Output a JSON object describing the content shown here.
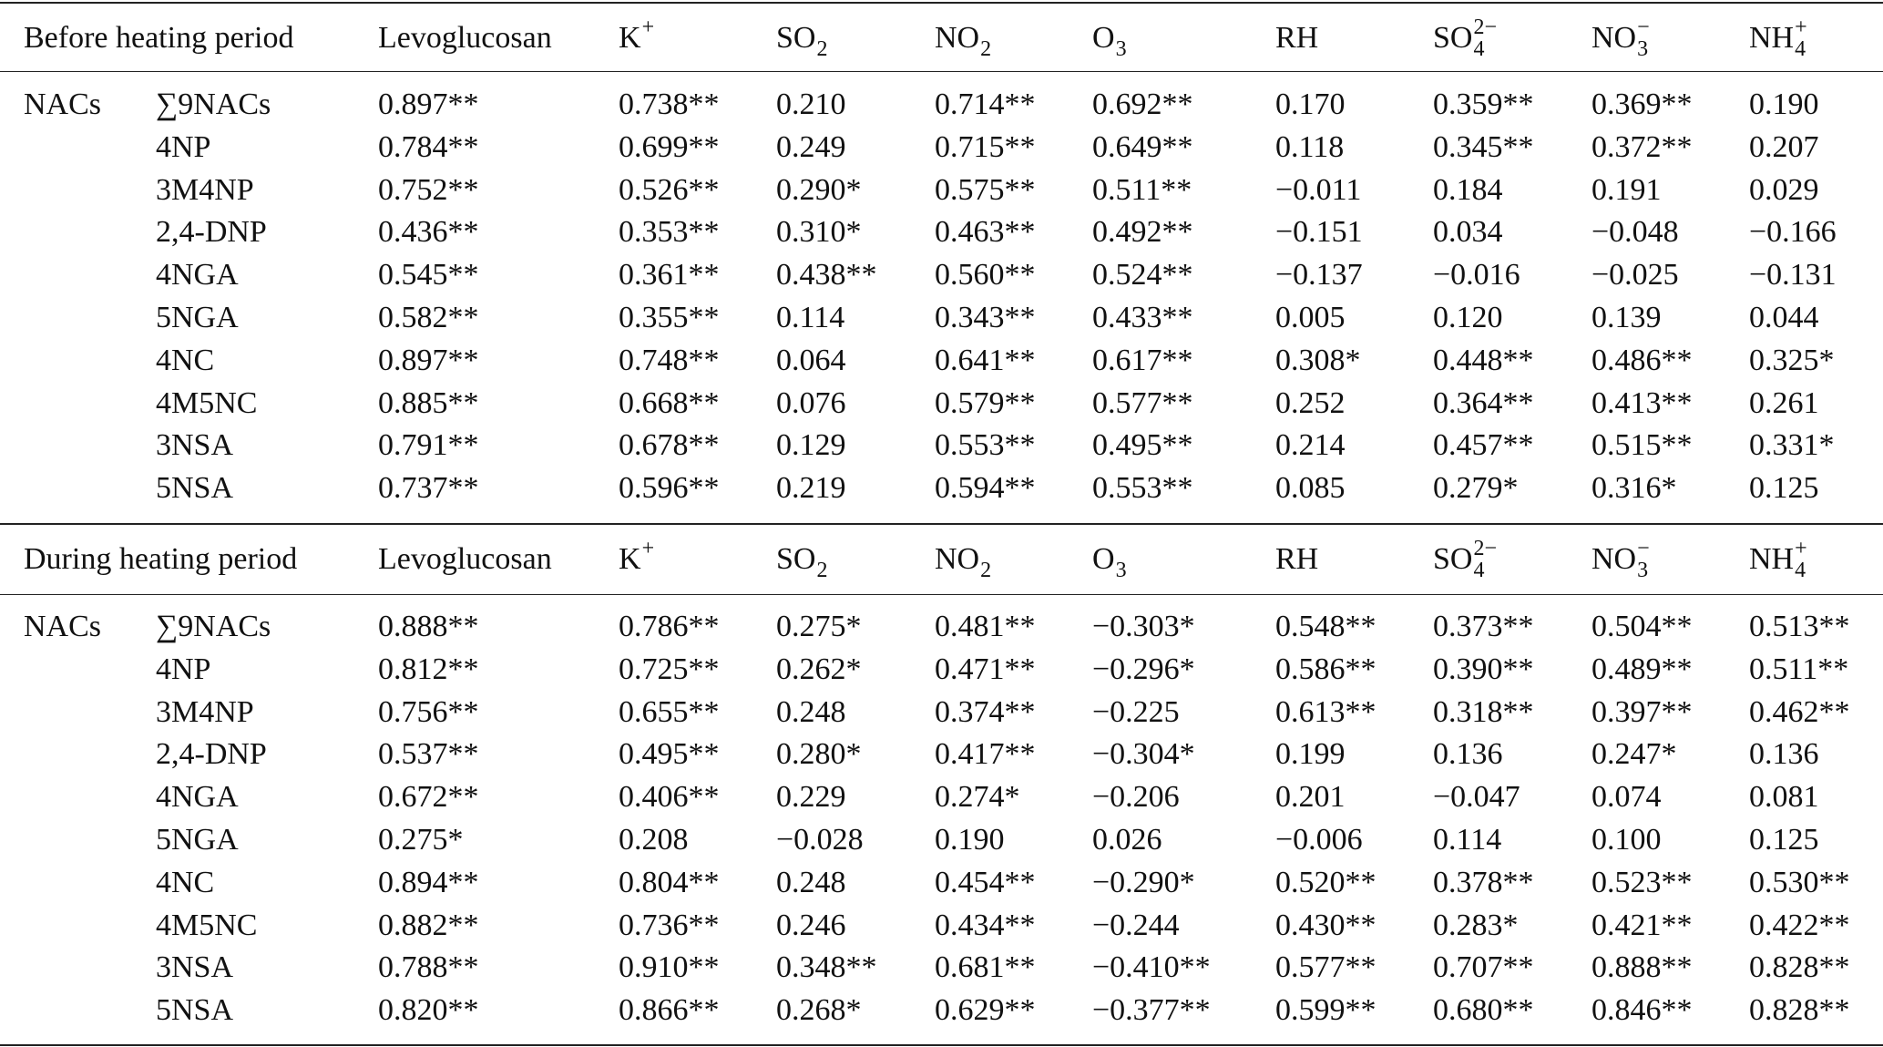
{
  "sections": [
    {
      "title": "Before heating period",
      "columns": [
        {
          "text": "Levoglucosan"
        },
        {
          "text": "K",
          "sup": "+"
        },
        {
          "text": "SO",
          "sub": "2"
        },
        {
          "text": "NO",
          "sub": "2"
        },
        {
          "text": "O",
          "sub": "3"
        },
        {
          "text": "RH"
        },
        {
          "text": "SO",
          "sub": "4",
          "sup": "2−"
        },
        {
          "text": "NO",
          "sub": "3",
          "sup": "−"
        },
        {
          "text": "NH",
          "sub": "4",
          "sup": "+"
        }
      ],
      "group": "NACs",
      "rows": [
        {
          "name": "∑9NACs",
          "values": [
            "0.897**",
            "0.738**",
            "0.210",
            "0.714**",
            "0.692**",
            "0.170",
            "0.359**",
            "0.369**",
            "0.190"
          ]
        },
        {
          "name": "4NP",
          "values": [
            "0.784**",
            "0.699**",
            "0.249",
            "0.715**",
            "0.649**",
            "0.118",
            "0.345**",
            "0.372**",
            "0.207"
          ]
        },
        {
          "name": "3M4NP",
          "values": [
            "0.752**",
            "0.526**",
            "0.290*",
            "0.575**",
            "0.511**",
            "−0.011",
            "0.184",
            "0.191",
            "0.029"
          ]
        },
        {
          "name": "2,4-DNP",
          "values": [
            "0.436**",
            "0.353**",
            "0.310*",
            "0.463**",
            "0.492**",
            "−0.151",
            "0.034",
            "−0.048",
            "−0.166"
          ]
        },
        {
          "name": "4NGA",
          "values": [
            "0.545**",
            "0.361**",
            "0.438**",
            "0.560**",
            "0.524**",
            "−0.137",
            "−0.016",
            "−0.025",
            "−0.131"
          ]
        },
        {
          "name": "5NGA",
          "values": [
            "0.582**",
            "0.355**",
            "0.114",
            "0.343**",
            "0.433**",
            "0.005",
            "0.120",
            "0.139",
            "0.044"
          ]
        },
        {
          "name": "4NC",
          "values": [
            "0.897**",
            "0.748**",
            "0.064",
            "0.641**",
            "0.617**",
            "0.308*",
            "0.448**",
            "0.486**",
            "0.325*"
          ]
        },
        {
          "name": "4M5NC",
          "values": [
            "0.885**",
            "0.668**",
            "0.076",
            "0.579**",
            "0.577**",
            "0.252",
            "0.364**",
            "0.413**",
            "0.261"
          ]
        },
        {
          "name": "3NSA",
          "values": [
            "0.791**",
            "0.678**",
            "0.129",
            "0.553**",
            "0.495**",
            "0.214",
            "0.457**",
            "0.515**",
            "0.331*"
          ]
        },
        {
          "name": "5NSA",
          "values": [
            "0.737**",
            "0.596**",
            "0.219",
            "0.594**",
            "0.553**",
            "0.085",
            "0.279*",
            "0.316*",
            "0.125"
          ]
        }
      ]
    },
    {
      "title": "During heating period",
      "columns": [
        {
          "text": "Levoglucosan"
        },
        {
          "text": "K",
          "sup": "+"
        },
        {
          "text": "SO",
          "sub": "2"
        },
        {
          "text": "NO",
          "sub": "2"
        },
        {
          "text": "O",
          "sub": "3"
        },
        {
          "text": "RH"
        },
        {
          "text": "SO",
          "sub": "4",
          "sup": "2−"
        },
        {
          "text": "NO",
          "sub": "3",
          "sup": "−"
        },
        {
          "text": "NH",
          "sub": "4",
          "sup": "+"
        }
      ],
      "group": "NACs",
      "rows": [
        {
          "name": "∑9NACs",
          "values": [
            "0.888**",
            "0.786**",
            "0.275*",
            "0.481**",
            "−0.303*",
            "0.548**",
            "0.373**",
            "0.504**",
            "0.513**"
          ]
        },
        {
          "name": "4NP",
          "values": [
            "0.812**",
            "0.725**",
            "0.262*",
            "0.471**",
            "−0.296*",
            "0.586**",
            "0.390**",
            "0.489**",
            "0.511**"
          ]
        },
        {
          "name": "3M4NP",
          "values": [
            "0.756**",
            "0.655**",
            "0.248",
            "0.374**",
            "−0.225",
            "0.613**",
            "0.318**",
            "0.397**",
            "0.462**"
          ]
        },
        {
          "name": "2,4-DNP",
          "values": [
            "0.537**",
            "0.495**",
            "0.280*",
            "0.417**",
            "−0.304*",
            "0.199",
            "0.136",
            "0.247*",
            "0.136"
          ]
        },
        {
          "name": "4NGA",
          "values": [
            "0.672**",
            "0.406**",
            "0.229",
            "0.274*",
            "−0.206",
            "0.201",
            "−0.047",
            "0.074",
            "0.081"
          ]
        },
        {
          "name": "5NGA",
          "values": [
            "0.275*",
            "0.208",
            "−0.028",
            "0.190",
            "0.026",
            "−0.006",
            "0.114",
            "0.100",
            "0.125"
          ]
        },
        {
          "name": "4NC",
          "values": [
            "0.894**",
            "0.804**",
            "0.248",
            "0.454**",
            "−0.290*",
            "0.520**",
            "0.378**",
            "0.523**",
            "0.530**"
          ]
        },
        {
          "name": "4M5NC",
          "values": [
            "0.882**",
            "0.736**",
            "0.246",
            "0.434**",
            "−0.244",
            "0.430**",
            "0.283*",
            "0.421**",
            "0.422**"
          ]
        },
        {
          "name": "3NSA",
          "values": [
            "0.788**",
            "0.910**",
            "0.348**",
            "0.681**",
            "−0.410**",
            "0.577**",
            "0.707**",
            "0.888**",
            "0.828**"
          ]
        },
        {
          "name": "5NSA",
          "values": [
            "0.820**",
            "0.866**",
            "0.268*",
            "0.629**",
            "−0.377**",
            "0.599**",
            "0.680**",
            "0.846**",
            "0.828**"
          ]
        }
      ]
    }
  ]
}
